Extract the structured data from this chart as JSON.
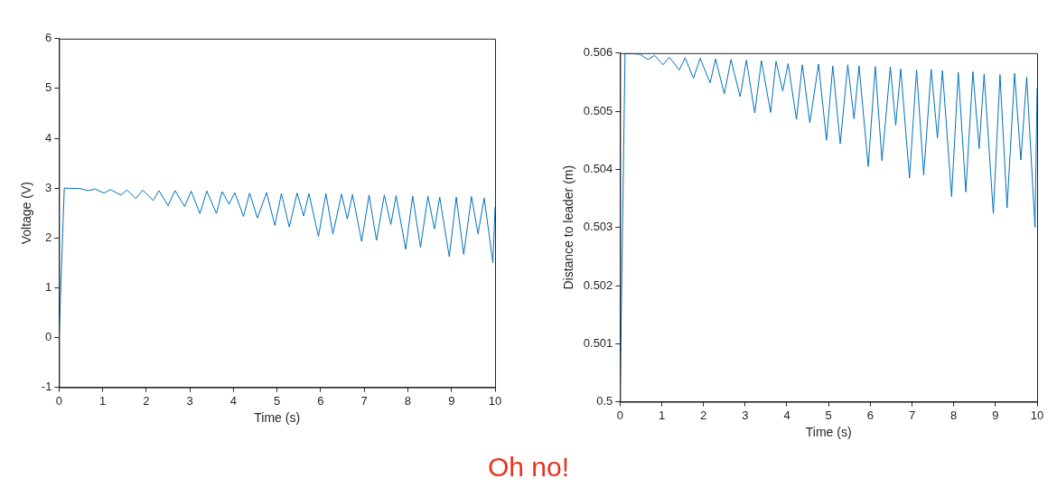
{
  "chart_data": [
    {
      "type": "line",
      "xlabel": "Time (s)",
      "ylabel": "Voltage (V)",
      "xlim": [
        0,
        10
      ],
      "xticks": [
        0,
        1,
        2,
        3,
        4,
        5,
        6,
        7,
        8,
        9,
        10
      ],
      "ylim": [
        -1,
        6
      ],
      "yticks": [
        -1,
        0,
        1,
        2,
        3,
        4,
        5,
        6
      ],
      "grid": false,
      "legend": false,
      "marker": "none",
      "line_style": "solid",
      "annotations": [
        "Oh no!"
      ],
      "series": [
        {
          "color": "#0072bd",
          "x": [
            0,
            0.12,
            0.48,
            0.67,
            0.83,
            1.03,
            1.18,
            1.42,
            1.56,
            1.76,
            1.92,
            2.16,
            2.29,
            2.5,
            2.66,
            2.88,
            3.03,
            3.23,
            3.39,
            3.61,
            3.74,
            3.9,
            4.03,
            4.23,
            4.37,
            4.55,
            4.76,
            4.95,
            5.1,
            5.28,
            5.46,
            5.61,
            5.73,
            5.95,
            6.12,
            6.28,
            6.48,
            6.61,
            6.73,
            6.94,
            7.11,
            7.28,
            7.46,
            7.61,
            7.73,
            7.95,
            8.11,
            8.29,
            8.46,
            8.61,
            8.73,
            8.95,
            9.11,
            9.28,
            9.46,
            9.61,
            9.75,
            9.95,
            10
          ],
          "values": [
            0,
            3,
            2.99,
            2.95,
            2.98,
            2.9,
            2.97,
            2.86,
            2.96,
            2.79,
            2.96,
            2.75,
            2.95,
            2.65,
            2.95,
            2.63,
            2.94,
            2.49,
            2.94,
            2.49,
            2.93,
            2.68,
            2.91,
            2.43,
            2.9,
            2.4,
            2.91,
            2.25,
            2.89,
            2.22,
            2.9,
            2.44,
            2.89,
            2.03,
            2.89,
            2.08,
            2.88,
            2.38,
            2.87,
            1.93,
            2.86,
            1.95,
            2.86,
            2.27,
            2.85,
            1.77,
            2.84,
            1.81,
            2.84,
            2.18,
            2.82,
            1.62,
            2.82,
            1.67,
            2.83,
            2.08,
            2.8,
            1.5,
            2.62
          ]
        }
      ]
    },
    {
      "type": "line",
      "xlabel": "Time (s)",
      "ylabel": "Distance to leader (m)",
      "xlim": [
        0,
        10
      ],
      "xticks": [
        0,
        1,
        2,
        3,
        4,
        5,
        6,
        7,
        8,
        9,
        10
      ],
      "ylim": [
        0.5,
        0.506
      ],
      "yticks": [
        0.5,
        0.501,
        0.502,
        0.503,
        0.504,
        0.505,
        0.506
      ],
      "grid": false,
      "legend": false,
      "marker": "none",
      "line_style": "solid",
      "series": [
        {
          "color": "#0072bd",
          "x": [
            0,
            0.12,
            0.48,
            0.67,
            0.83,
            1.03,
            1.18,
            1.42,
            1.56,
            1.76,
            1.92,
            2.16,
            2.29,
            2.5,
            2.66,
            2.88,
            3.03,
            3.23,
            3.39,
            3.61,
            3.74,
            3.9,
            4.03,
            4.23,
            4.37,
            4.55,
            4.76,
            4.95,
            5.1,
            5.28,
            5.46,
            5.61,
            5.73,
            5.95,
            6.12,
            6.28,
            6.48,
            6.61,
            6.73,
            6.94,
            7.11,
            7.28,
            7.46,
            7.61,
            7.73,
            7.95,
            8.11,
            8.29,
            8.46,
            8.61,
            8.73,
            8.95,
            9.11,
            9.28,
            9.46,
            9.61,
            9.75,
            9.95,
            10
          ],
          "values": [
            0.5,
            0.506,
            0.50598,
            0.50589,
            0.50596,
            0.5058,
            0.50593,
            0.50571,
            0.50592,
            0.50557,
            0.50591,
            0.50549,
            0.5059,
            0.5053,
            0.50589,
            0.50525,
            0.50588,
            0.50497,
            0.50587,
            0.50498,
            0.50586,
            0.50535,
            0.50582,
            0.50486,
            0.5058,
            0.5048,
            0.50581,
            0.5045,
            0.50578,
            0.50444,
            0.5058,
            0.50487,
            0.50578,
            0.50405,
            0.50577,
            0.50415,
            0.50576,
            0.50476,
            0.50573,
            0.50385,
            0.50571,
            0.5039,
            0.50572,
            0.50454,
            0.5057,
            0.50353,
            0.50567,
            0.50361,
            0.50568,
            0.50436,
            0.50564,
            0.50324,
            0.50563,
            0.50334,
            0.50565,
            0.50416,
            0.50559,
            0.503,
            0.5054
          ]
        }
      ]
    }
  ]
}
